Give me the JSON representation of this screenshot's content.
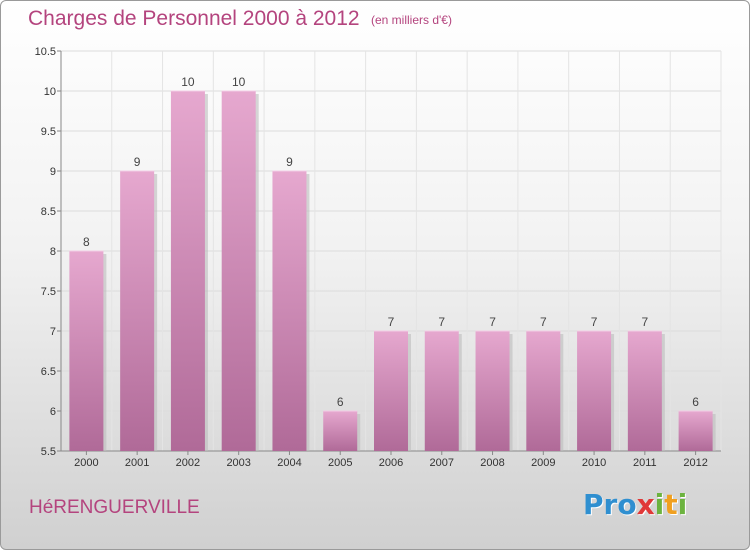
{
  "header": {
    "title": "Charges de Personnel 2000 à 2012",
    "subtitle": "(en milliers d'€)"
  },
  "footer": {
    "commune": "HéRENGUERVILLE",
    "logo_letters": [
      {
        "ch": "P",
        "color": "#2f8fd0"
      },
      {
        "ch": "r",
        "color": "#2f8fd0"
      },
      {
        "ch": "o",
        "color": "#2f8fd0"
      },
      {
        "ch": "x",
        "color": "#e03838"
      },
      {
        "ch": "i",
        "color": "#6cb33f"
      },
      {
        "ch": "t",
        "color": "#f0a020"
      },
      {
        "ch": "i",
        "color": "#6cb33f"
      }
    ]
  },
  "colors": {
    "bar_top": "#e6a8cf",
    "bar_bottom": "#b06a98",
    "accent": "#b4447e"
  },
  "chart_data": {
    "type": "bar",
    "title": "Charges de Personnel 2000 à 2012",
    "subtitle": "(en milliers d'€)",
    "categories": [
      "2000",
      "2001",
      "2002",
      "2003",
      "2004",
      "2005",
      "2006",
      "2007",
      "2008",
      "2009",
      "2010",
      "2011",
      "2012"
    ],
    "values": [
      8,
      9,
      10,
      10,
      9,
      6,
      7,
      7,
      7,
      7,
      7,
      7,
      6
    ],
    "value_labels": [
      "8",
      "9",
      "10",
      "10",
      "9",
      "6",
      "7",
      "7",
      "7",
      "7",
      "7",
      "7",
      "6"
    ],
    "ylim": [
      5.5,
      10.5
    ],
    "yticks": [
      5.5,
      6,
      6.5,
      7,
      7.5,
      8,
      8.5,
      9,
      9.5,
      10,
      10.5
    ],
    "ytick_labels": [
      "5.5",
      "6",
      "6.5",
      "7",
      "7.5",
      "8",
      "8.5",
      "9",
      "9.5",
      "10",
      "10.5"
    ],
    "xlabel": "",
    "ylabel": "",
    "grid": true,
    "legend": "none"
  }
}
